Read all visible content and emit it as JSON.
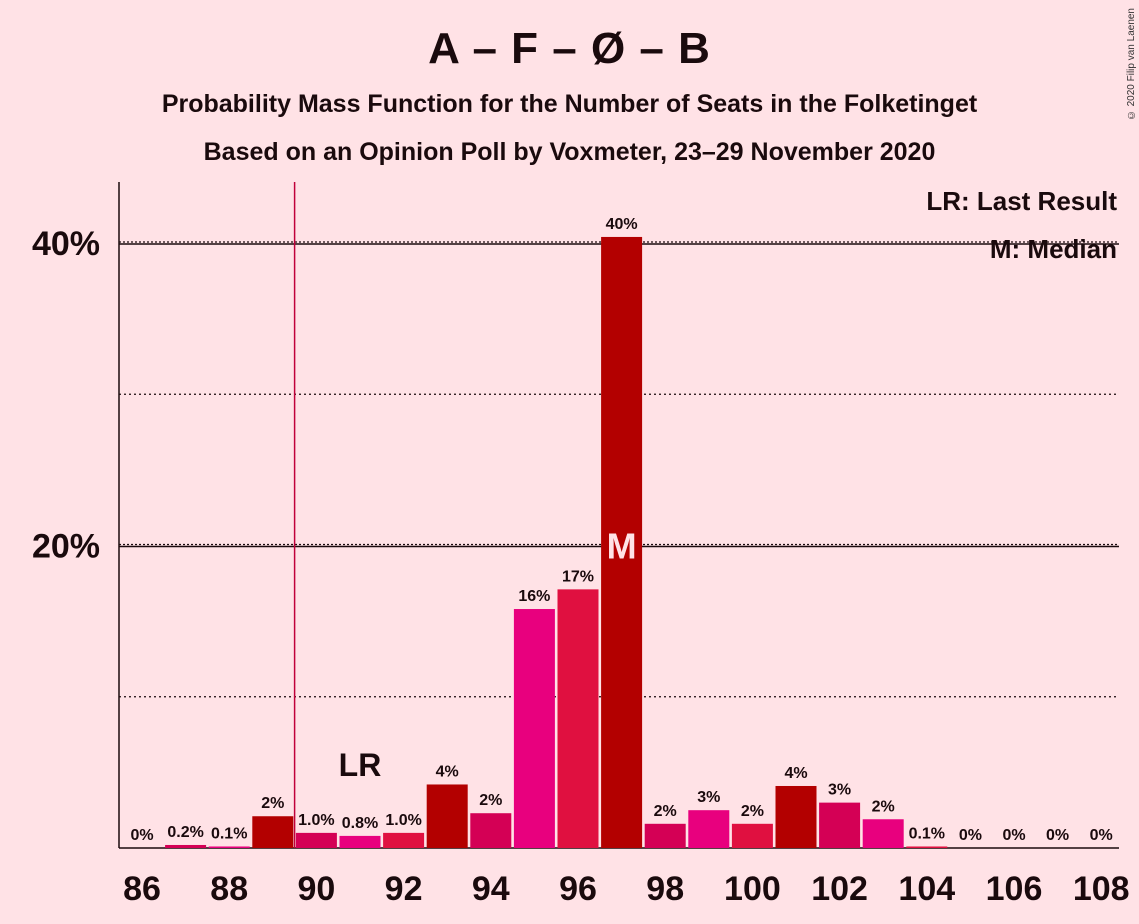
{
  "chart_data": {
    "type": "bar",
    "title": "A – F – Ø – B",
    "subtitle_line1": "Probability Mass Function for the Number of Seats in the Folketinget",
    "subtitle_line2": "Based on an Opinion Poll by Voxmeter, 23–29 November 2020",
    "copyright": "© 2020 Filip van Laenen",
    "x": [
      86,
      87,
      88,
      89,
      90,
      91,
      92,
      93,
      94,
      95,
      96,
      97,
      98,
      99,
      100,
      101,
      102,
      103,
      104,
      105,
      106,
      107,
      108
    ],
    "values": [
      0,
      0.2,
      0.1,
      2.1,
      1.0,
      0.8,
      1.0,
      4.2,
      2.3,
      15.8,
      17.1,
      40.4,
      1.6,
      2.5,
      1.6,
      4.1,
      3.0,
      1.9,
      0.1,
      0,
      0,
      0,
      0
    ],
    "data_labels": [
      "0%",
      "0.2%",
      "0.1%",
      "2%",
      "1.0%",
      "0.8%",
      "1.0%",
      "4%",
      "2%",
      "16%",
      "17%",
      "40%",
      "2%",
      "3%",
      "2%",
      "4%",
      "3%",
      "2%",
      "0.1%",
      "0%",
      "0%",
      "0%",
      "0%"
    ],
    "colors": [
      "#b30000",
      "#d40055",
      "#e8007e",
      "#b30000",
      "#d40055",
      "#e8007e",
      "#e01040",
      "#b30000",
      "#d40055",
      "#e8007e",
      "#e01040",
      "#b30000",
      "#d40055",
      "#e8007e",
      "#e01040",
      "#b30000",
      "#d40055",
      "#e8007e",
      "#e01040",
      "#b30000",
      "#d40055",
      "#e8007e",
      "#e01040"
    ],
    "x_ticks": [
      86,
      88,
      90,
      92,
      94,
      96,
      98,
      100,
      102,
      104,
      106,
      108
    ],
    "y_ticks": [
      {
        "value": 20,
        "label": "20%"
      },
      {
        "value": 40,
        "label": "40%"
      }
    ],
    "ylim": [
      0,
      44
    ],
    "last_result": {
      "seat": 91,
      "label": "LR"
    },
    "median": {
      "seat": 97,
      "label": "M"
    },
    "legend": {
      "placement": "top-right",
      "lr": "LR: Last Result",
      "median": "M: Median"
    },
    "lr_line_color": "#c0003a"
  }
}
